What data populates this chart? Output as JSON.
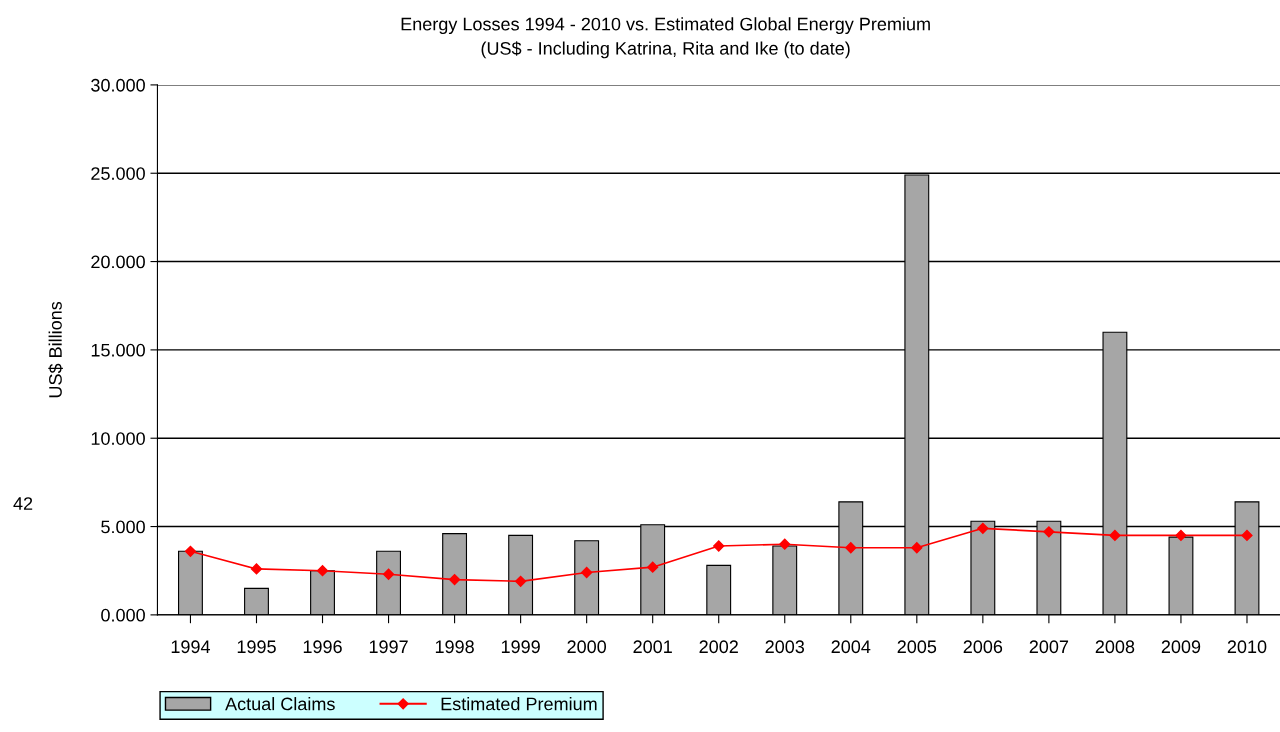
{
  "chart_data": {
    "type": "bar",
    "title": "Energy Losses 1994 - 2010 vs. Estimated Global Energy Premium",
    "subtitle": "(US$ - Including Katrina, Rita and Ike (to date)",
    "ylabel": "US$ Billions",
    "categories": [
      "1994",
      "1995",
      "1996",
      "1997",
      "1998",
      "1999",
      "2000",
      "2001",
      "2002",
      "2003",
      "2004",
      "2005",
      "2006",
      "2007",
      "2008",
      "2009",
      "2010"
    ],
    "series": [
      {
        "name": "Actual Claims",
        "color": "#a6a6a6",
        "values": [
          3.6,
          1.5,
          2.5,
          3.6,
          4.6,
          4.5,
          4.2,
          5.1,
          2.8,
          3.9,
          6.4,
          24.9,
          5.3,
          5.3,
          16.0,
          4.4,
          6.4
        ]
      },
      {
        "name": "Estimated Premium",
        "type": "line",
        "color": "#ff0000",
        "marker": "diamond",
        "values": [
          3.6,
          2.6,
          2.5,
          2.3,
          2.0,
          1.9,
          2.4,
          2.7,
          3.9,
          4.0,
          3.8,
          3.8,
          4.9,
          4.7,
          4.5,
          4.5,
          4.5
        ]
      }
    ],
    "ylim": [
      0,
      30
    ],
    "yticks": [
      {
        "value": 0,
        "label": "0.000"
      },
      {
        "value": 5,
        "label": "5.000"
      },
      {
        "value": 10,
        "label": "10.000"
      },
      {
        "value": 15,
        "label": "15.000"
      },
      {
        "value": 20,
        "label": "20.000"
      },
      {
        "value": 25,
        "label": "25.000"
      },
      {
        "value": 30,
        "label": "30.000"
      }
    ],
    "grid": "y",
    "legend": "bottom left",
    "annotations": [
      "42"
    ]
  }
}
